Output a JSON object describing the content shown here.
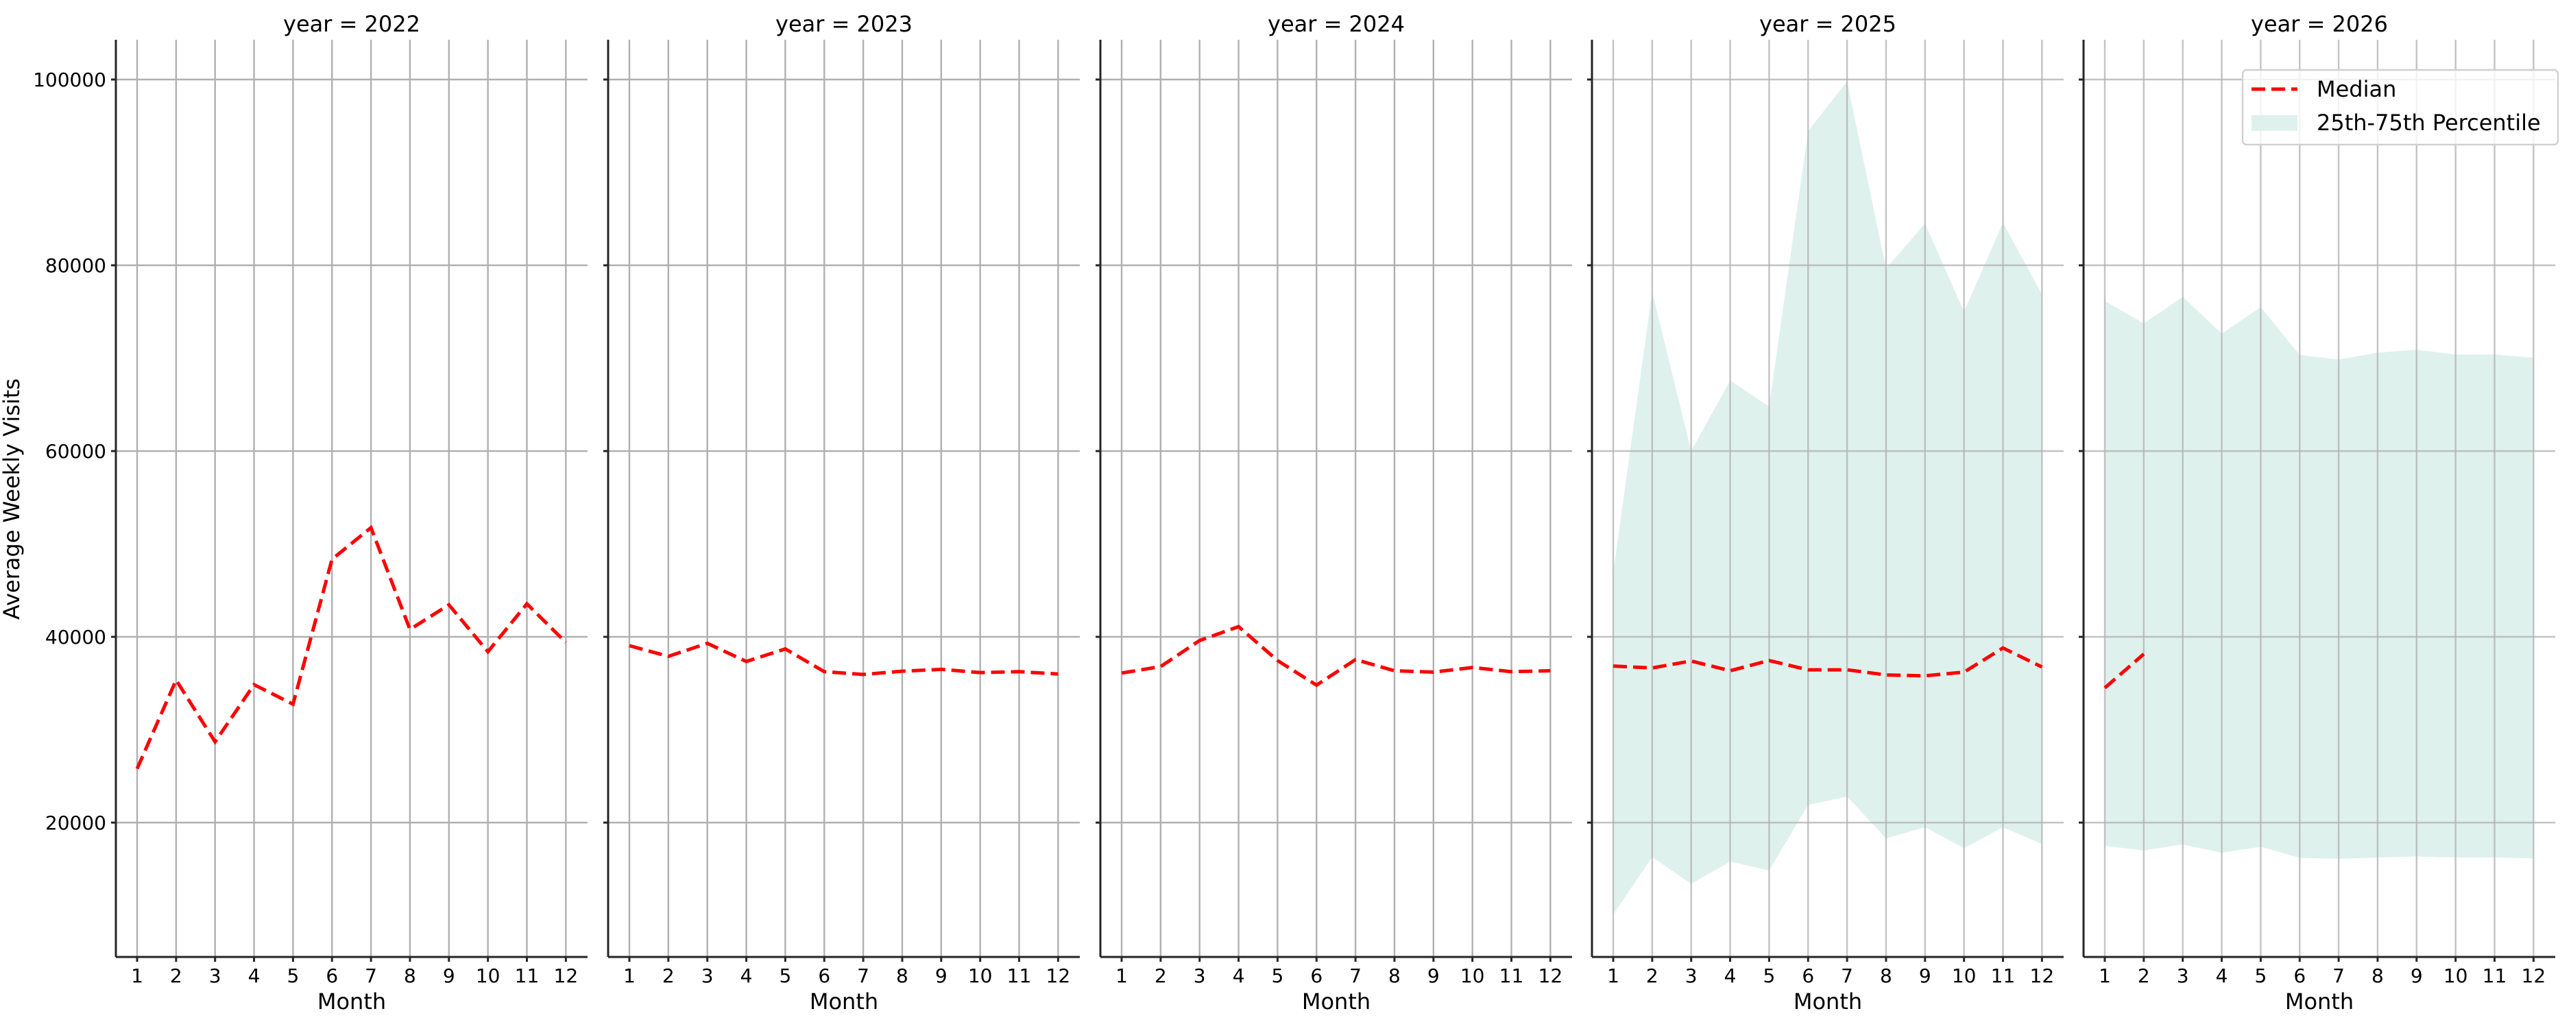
{
  "figure": {
    "ylabel": "Average Weekly Visits",
    "xlabel": "Month",
    "panel_title_prefix": "year = ",
    "y_ticks": [
      20000,
      40000,
      60000,
      80000,
      100000
    ],
    "x_ticks": [
      1,
      2,
      3,
      4,
      5,
      6,
      7,
      8,
      9,
      10,
      11,
      12
    ],
    "legend": {
      "median_label": "Median",
      "band_label": "25th-75th Percentile"
    },
    "colors": {
      "median": "#ff0000",
      "band": "#dff1ec",
      "grid": "#b0b0b0",
      "spine": "#262626"
    }
  },
  "chart_data": {
    "type": "line",
    "title": "",
    "xlabel": "Month",
    "ylabel": "Average Weekly Visits",
    "ylim": [
      5500,
      104300
    ],
    "xlim": [
      0.45,
      12.55
    ],
    "grid": true,
    "legend_position": "upper right (last panel)",
    "facet_by": "year",
    "x": [
      1,
      2,
      3,
      4,
      5,
      6,
      7,
      8,
      9,
      10,
      11,
      12
    ],
    "panels": [
      {
        "title": "year = 2022",
        "year": 2022,
        "series": [
          {
            "name": "Median",
            "style": "dashed",
            "values": [
              25800,
              35350,
              28700,
              34850,
              32750,
              48350,
              51750,
              40800,
              43450,
              38400,
              43550,
              39400
            ]
          }
        ],
        "band": null
      },
      {
        "title": "year = 2023",
        "year": 2023,
        "series": [
          {
            "name": "Median",
            "style": "dashed",
            "values": [
              39050,
              37900,
              39300,
              37350,
              38700,
              36250,
              35950,
              36300,
              36500,
              36150,
              36250,
              36000
            ]
          }
        ],
        "band": null
      },
      {
        "title": "year = 2024",
        "year": 2024,
        "series": [
          {
            "name": "Median",
            "style": "dashed",
            "values": [
              36100,
              36800,
              39600,
              41100,
              37450,
              34800,
              37550,
              36350,
              36200,
              36700,
              36250,
              36350
            ]
          }
        ],
        "band": null
      },
      {
        "title": "year = 2025",
        "year": 2025,
        "series": [
          {
            "name": "Median",
            "style": "dashed",
            "values": [
              36850,
              36650,
              37400,
              36350,
              37450,
              36450,
              36450,
              35900,
              35800,
              36200,
              38800,
              36750
            ]
          }
        ],
        "band": {
          "name": "25th-75th Percentile",
          "lower": [
            10100,
            16300,
            13400,
            15800,
            14850,
            21900,
            22800,
            18300,
            19500,
            17250,
            19500,
            17700
          ],
          "upper": [
            46900,
            77150,
            60000,
            67600,
            64800,
            94450,
            99800,
            79650,
            84500,
            75000,
            84600,
            76850
          ]
        }
      },
      {
        "title": "year = 2026",
        "year": 2026,
        "series": [
          {
            "name": "Median",
            "style": "dashed",
            "values": [
              34500,
              38150,
              null,
              null,
              null,
              null,
              null,
              null,
              null,
              null,
              null,
              null
            ]
          }
        ],
        "band": {
          "name": "25th-75th Percentile",
          "lower": [
            17500,
            17000,
            17650,
            16750,
            17400,
            16200,
            16100,
            16250,
            16350,
            16250,
            16250,
            16150
          ],
          "upper": [
            76150,
            73750,
            76600,
            72650,
            75500,
            70350,
            69850,
            70600,
            70900,
            70400,
            70400,
            70050
          ]
        }
      }
    ],
    "legend": [
      "Median",
      "25th-75th Percentile"
    ]
  }
}
